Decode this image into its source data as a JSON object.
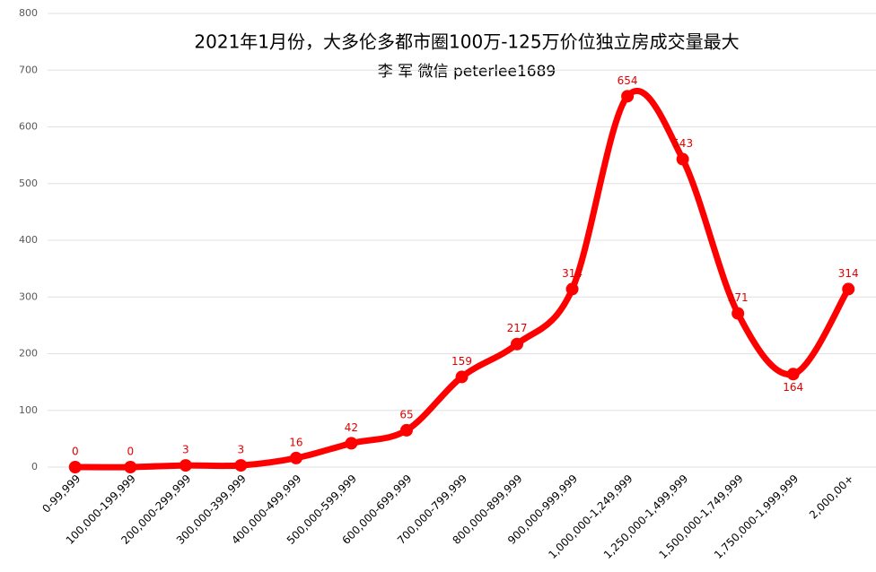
{
  "chart_data": {
    "type": "line",
    "title": "2021年1月份，大多伦多都市圈100万-125万价位独立房成交量最大",
    "subtitle": "李 军  微信  peterlee1689",
    "categories": [
      "0-99,999",
      "100,000-199,999",
      "200,000-299,999",
      "300,000-399,999",
      "400,000-499,999",
      "500,000-599,999",
      "600,000-699,999",
      "700,000-799,999",
      "800,000-899,999",
      "900,000-999,999",
      "1,000,000-1,249,999",
      "1,250,000-1,499,999",
      "1,500,000-1,749,999",
      "1,750,000-1,999,999",
      "2,000,00+"
    ],
    "values": [
      0,
      0,
      3,
      3,
      16,
      42,
      65,
      159,
      217,
      314,
      654,
      543,
      271,
      164,
      314
    ],
    "color": "#ff0000",
    "smooth": true,
    "ylim": [
      0,
      800
    ],
    "yticks": [
      0,
      100,
      200,
      300,
      400,
      500,
      600,
      700,
      800
    ],
    "grid": true
  }
}
